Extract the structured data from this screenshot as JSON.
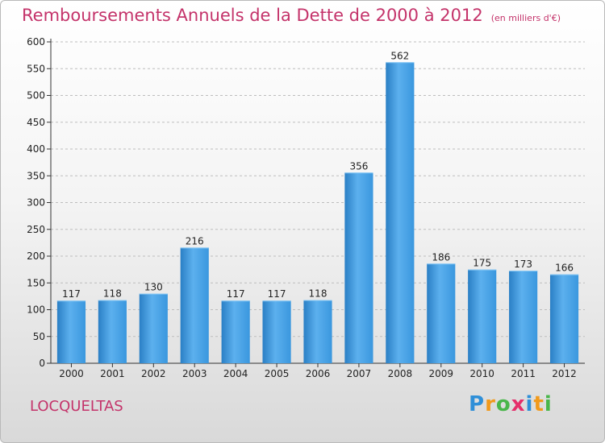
{
  "header": {
    "title": "Remboursements Annuels de la Dette de 2000 à 2012",
    "unit": "(en milliers d'€)"
  },
  "footer": {
    "commune": "LOCQUELTAS",
    "logo": {
      "letters": [
        {
          "ch": "P",
          "color": "#2f8fd8"
        },
        {
          "ch": "r",
          "color": "#f19a1c"
        },
        {
          "ch": "o",
          "color": "#49b64a"
        },
        {
          "ch": "x",
          "color": "#e52e6b"
        },
        {
          "ch": "i",
          "color": "#2f8fd8"
        },
        {
          "ch": "t",
          "color": "#f19a1c"
        },
        {
          "ch": "i",
          "color": "#49b64a"
        }
      ]
    }
  },
  "colors": {
    "bar": "#3a97de",
    "bar_light": "#5cb0ee",
    "bar_dark": "#2a7fc5",
    "grid": "#bdbdbd",
    "title": "#c4336a"
  },
  "chart_data": {
    "type": "bar",
    "categories": [
      "2000",
      "2001",
      "2002",
      "2003",
      "2004",
      "2005",
      "2006",
      "2007",
      "2008",
      "2009",
      "2010",
      "2011",
      "2012"
    ],
    "values": [
      117,
      118,
      130,
      216,
      117,
      117,
      118,
      356,
      562,
      186,
      175,
      173,
      166
    ],
    "ylim": [
      0,
      600
    ],
    "yticks": [
      0,
      50,
      100,
      150,
      200,
      250,
      300,
      350,
      400,
      450,
      500,
      550,
      600
    ],
    "grid": true
  }
}
